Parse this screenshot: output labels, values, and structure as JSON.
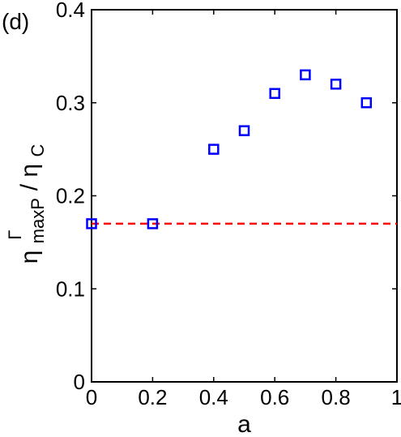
{
  "panel_label": "(d)",
  "chart_data": {
    "type": "scatter",
    "xlabel": "a",
    "ylabel": {
      "main": "η",
      "main_sub": "maxP",
      "main_sup": "Γ",
      "slash": "/",
      "denom": "η",
      "denom_sub": "C"
    },
    "xlim": [
      0,
      1
    ],
    "ylim": [
      0,
      0.4
    ],
    "xticks": [
      0,
      0.2,
      0.4,
      0.6,
      0.8,
      1
    ],
    "xtick_labels": [
      "0",
      "0.2",
      "0.4",
      "0.6",
      "0.8",
      "1"
    ],
    "yticks": [
      0,
      0.1,
      0.2,
      0.3,
      0.4
    ],
    "ytick_labels": [
      "0",
      "0.1",
      "0.2",
      "0.3",
      "0.4"
    ],
    "grid": false,
    "series": [
      {
        "marker": "square",
        "color": "#0000ff",
        "x": [
          0,
          0.2,
          0.4,
          0.5,
          0.6,
          0.7,
          0.8,
          0.9
        ],
        "y": [
          0.17,
          0.17,
          0.25,
          0.27,
          0.31,
          0.33,
          0.32,
          0.3
        ]
      }
    ],
    "reference_line": {
      "y": 0.17,
      "style": "dashed",
      "color": "#ff0000"
    }
  }
}
